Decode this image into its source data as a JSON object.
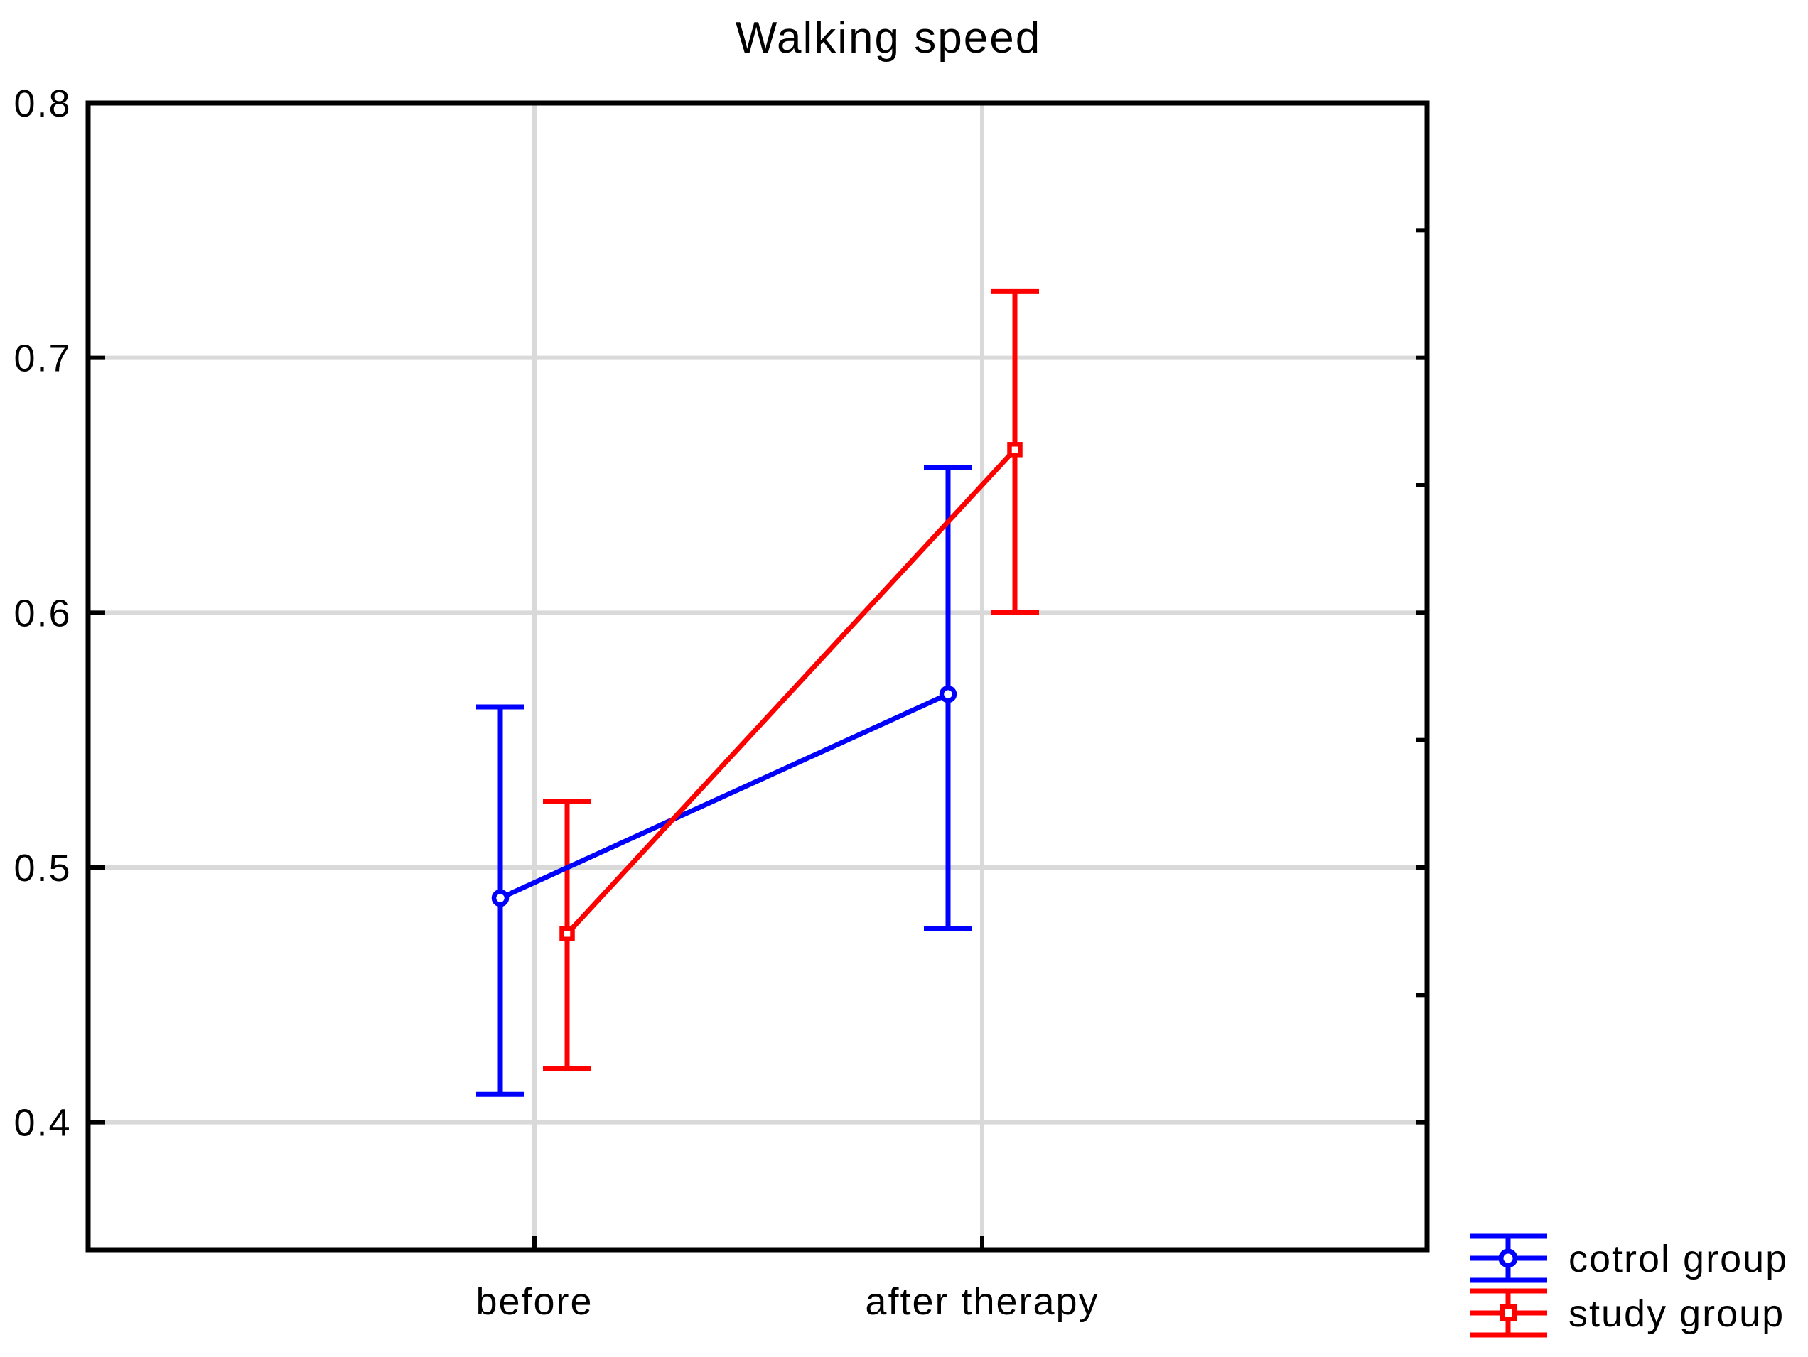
{
  "title": "Walking speed",
  "chart_data": {
    "type": "line",
    "title": "Walking speed",
    "categories": [
      "before",
      "after therapy"
    ],
    "y_axis": {
      "min": 0.35,
      "max": 0.8,
      "tick_values": [
        0.8,
        0.7,
        0.6,
        0.5,
        0.4
      ],
      "tick_labels": [
        "0.8",
        "0.7",
        "0.6",
        "0.5",
        "0.4"
      ],
      "gridline_values": [
        0.7,
        0.6,
        0.5,
        0.4
      ],
      "right_minor_tick_values": [
        0.75,
        0.7,
        0.65,
        0.6,
        0.55,
        0.5,
        0.45,
        0.4
      ]
    },
    "series": [
      {
        "name": "cotrol group",
        "color": "#0000ff",
        "marker": "circle",
        "values": [
          0.488,
          0.568
        ],
        "ci_low": [
          0.411,
          0.476
        ],
        "ci_high": [
          0.563,
          0.657
        ]
      },
      {
        "name": "study group",
        "color": "#ff0000",
        "marker": "square",
        "values": [
          0.474,
          0.664
        ],
        "ci_low": [
          0.421,
          0.6
        ],
        "ci_high": [
          0.526,
          0.726
        ]
      }
    ],
    "grid": true,
    "grid_color": "#d9d9d9",
    "frame_color": "#000000",
    "background": "#ffffff",
    "legend_position": "bottom-right"
  }
}
